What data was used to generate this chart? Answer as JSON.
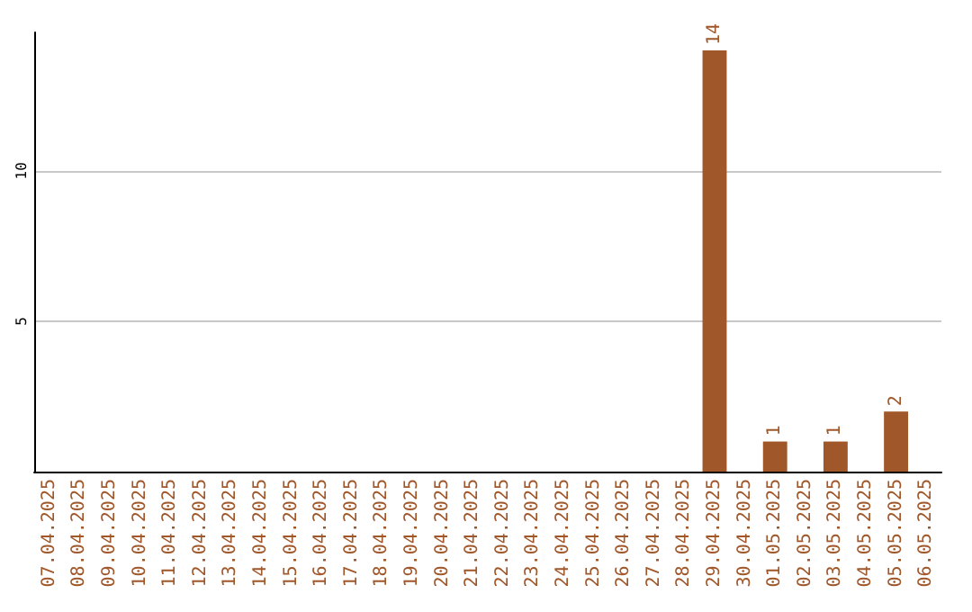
{
  "chart_data": {
    "type": "bar",
    "categories": [
      "07.04.2025",
      "08.04.2025",
      "09.04.2025",
      "10.04.2025",
      "11.04.2025",
      "12.04.2025",
      "13.04.2025",
      "14.04.2025",
      "15.04.2025",
      "16.04.2025",
      "17.04.2025",
      "18.04.2025",
      "19.04.2025",
      "20.04.2025",
      "21.04.2025",
      "22.04.2025",
      "23.04.2025",
      "24.04.2025",
      "25.04.2025",
      "26.04.2025",
      "27.04.2025",
      "28.04.2025",
      "29.04.2025",
      "30.04.2025",
      "01.05.2025",
      "02.05.2025",
      "03.05.2025",
      "04.05.2025",
      "05.05.2025",
      "06.05.2025"
    ],
    "values": [
      0,
      0,
      0,
      0,
      0,
      0,
      0,
      0,
      0,
      0,
      0,
      0,
      0,
      0,
      0,
      0,
      0,
      0,
      0,
      0,
      0,
      0,
      14,
      0,
      1,
      0,
      1,
      0,
      2,
      0
    ],
    "value_labels": [
      null,
      null,
      null,
      null,
      null,
      null,
      null,
      null,
      null,
      null,
      null,
      null,
      null,
      null,
      null,
      null,
      null,
      null,
      null,
      null,
      null,
      null,
      "14",
      null,
      "1",
      null,
      "1",
      null,
      "2",
      null
    ],
    "color": "#a0572a",
    "ylim": [
      0,
      14.6
    ],
    "yticks": [
      5,
      10
    ],
    "grid": "y"
  }
}
